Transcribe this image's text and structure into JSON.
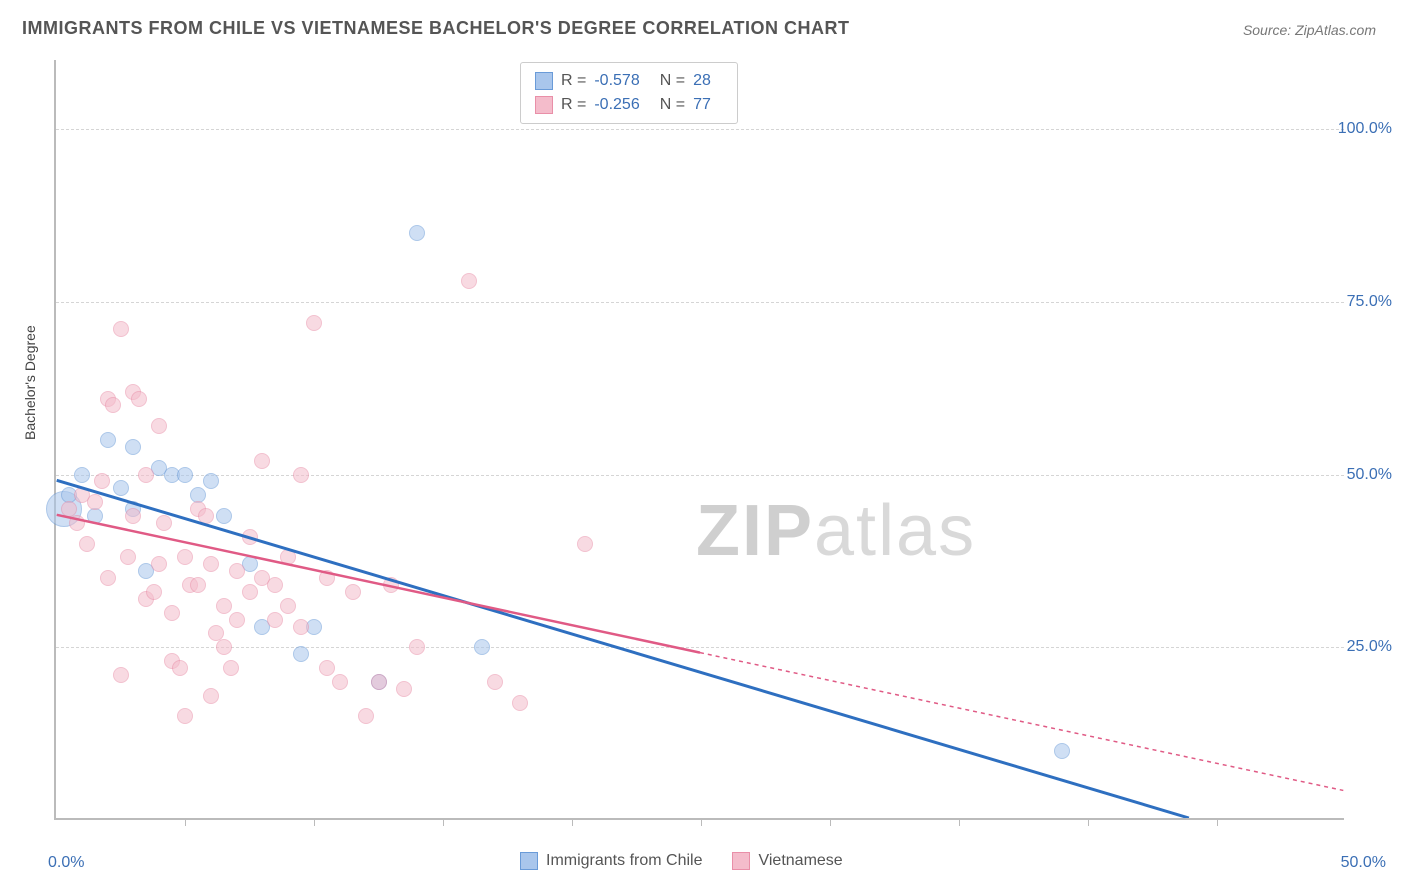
{
  "title": "IMMIGRANTS FROM CHILE VS VIETNAMESE BACHELOR'S DEGREE CORRELATION CHART",
  "source": "Source: ZipAtlas.com",
  "watermark_bold": "ZIP",
  "watermark_rest": "atlas",
  "chart": {
    "type": "scatter",
    "x_axis_label": "",
    "y_axis_label": "Bachelor's Degree",
    "xlim": [
      0,
      50
    ],
    "ylim": [
      0,
      110
    ],
    "x_tick_label_left": "0.0%",
    "x_tick_label_right": "50.0%",
    "y_tick_positions": [
      25,
      50,
      75,
      100
    ],
    "y_tick_labels": [
      "25.0%",
      "50.0%",
      "75.0%",
      "100.0%"
    ],
    "x_minor_ticks": [
      5,
      10,
      15,
      20,
      25,
      30,
      35,
      40,
      45
    ],
    "background_color": "#ffffff",
    "grid_color": "#d5d5d5",
    "axis_color": "#bbbbbb",
    "tick_label_color": "#3b6fb5",
    "point_radius": 8,
    "point_opacity": 0.55,
    "series": [
      {
        "name": "Immigrants from Chile",
        "color_fill": "#a9c6ec",
        "color_stroke": "#6a9bd8",
        "line_color": "#2e6fc0",
        "line_dash": "none",
        "r_value": "-0.578",
        "n_value": "28",
        "regression": {
          "x1": 0,
          "y1": 49,
          "x2": 44,
          "y2": 0
        },
        "points": [
          {
            "x": 0.3,
            "y": 45,
            "s": 18
          },
          {
            "x": 0.5,
            "y": 47,
            "s": 8
          },
          {
            "x": 1.0,
            "y": 50,
            "s": 8
          },
          {
            "x": 1.5,
            "y": 44,
            "s": 8
          },
          {
            "x": 2.0,
            "y": 55,
            "s": 8
          },
          {
            "x": 2.5,
            "y": 48,
            "s": 8
          },
          {
            "x": 3.0,
            "y": 54,
            "s": 8
          },
          {
            "x": 3.0,
            "y": 45,
            "s": 8
          },
          {
            "x": 3.5,
            "y": 36,
            "s": 8
          },
          {
            "x": 4.0,
            "y": 51,
            "s": 8
          },
          {
            "x": 4.5,
            "y": 50,
            "s": 8
          },
          {
            "x": 5.0,
            "y": 50,
            "s": 8
          },
          {
            "x": 5.5,
            "y": 47,
            "s": 8
          },
          {
            "x": 6.0,
            "y": 49,
            "s": 8
          },
          {
            "x": 6.5,
            "y": 44,
            "s": 8
          },
          {
            "x": 7.5,
            "y": 37,
            "s": 8
          },
          {
            "x": 8.0,
            "y": 28,
            "s": 8
          },
          {
            "x": 9.5,
            "y": 24,
            "s": 8
          },
          {
            "x": 10.0,
            "y": 28,
            "s": 8
          },
          {
            "x": 12.5,
            "y": 20,
            "s": 8
          },
          {
            "x": 14.0,
            "y": 85,
            "s": 8
          },
          {
            "x": 16.5,
            "y": 25,
            "s": 8
          },
          {
            "x": 39.0,
            "y": 10,
            "s": 8
          }
        ]
      },
      {
        "name": "Vietnamese",
        "color_fill": "#f4bccb",
        "color_stroke": "#e98fa8",
        "line_color": "#e05a85",
        "line_dash": "4,4",
        "r_value": "-0.256",
        "n_value": "77",
        "regression_solid": {
          "x1": 0,
          "y1": 44,
          "x2": 25,
          "y2": 24
        },
        "regression_dashed": {
          "x1": 25,
          "y1": 24,
          "x2": 50,
          "y2": 4
        },
        "points": [
          {
            "x": 0.5,
            "y": 45
          },
          {
            "x": 0.8,
            "y": 43
          },
          {
            "x": 1.0,
            "y": 47
          },
          {
            "x": 1.2,
            "y": 40
          },
          {
            "x": 1.5,
            "y": 46
          },
          {
            "x": 1.8,
            "y": 49
          },
          {
            "x": 2.0,
            "y": 35
          },
          {
            "x": 2.0,
            "y": 61
          },
          {
            "x": 2.2,
            "y": 60
          },
          {
            "x": 2.5,
            "y": 21
          },
          {
            "x": 2.5,
            "y": 71
          },
          {
            "x": 2.8,
            "y": 38
          },
          {
            "x": 3.0,
            "y": 62
          },
          {
            "x": 3.0,
            "y": 44
          },
          {
            "x": 3.2,
            "y": 61
          },
          {
            "x": 3.5,
            "y": 32
          },
          {
            "x": 3.5,
            "y": 50
          },
          {
            "x": 3.8,
            "y": 33
          },
          {
            "x": 4.0,
            "y": 57
          },
          {
            "x": 4.0,
            "y": 37
          },
          {
            "x": 4.2,
            "y": 43
          },
          {
            "x": 4.5,
            "y": 30
          },
          {
            "x": 4.5,
            "y": 23
          },
          {
            "x": 4.8,
            "y": 22
          },
          {
            "x": 5.0,
            "y": 38
          },
          {
            "x": 5.0,
            "y": 15
          },
          {
            "x": 5.2,
            "y": 34
          },
          {
            "x": 5.5,
            "y": 34
          },
          {
            "x": 5.5,
            "y": 45
          },
          {
            "x": 5.8,
            "y": 44
          },
          {
            "x": 6.0,
            "y": 37
          },
          {
            "x": 6.0,
            "y": 18
          },
          {
            "x": 6.2,
            "y": 27
          },
          {
            "x": 6.5,
            "y": 31
          },
          {
            "x": 6.5,
            "y": 25
          },
          {
            "x": 6.8,
            "y": 22
          },
          {
            "x": 7.0,
            "y": 36
          },
          {
            "x": 7.0,
            "y": 29
          },
          {
            "x": 7.5,
            "y": 33
          },
          {
            "x": 7.5,
            "y": 41
          },
          {
            "x": 8.0,
            "y": 35
          },
          {
            "x": 8.0,
            "y": 52
          },
          {
            "x": 8.5,
            "y": 29
          },
          {
            "x": 8.5,
            "y": 34
          },
          {
            "x": 9.0,
            "y": 38
          },
          {
            "x": 9.0,
            "y": 31
          },
          {
            "x": 9.5,
            "y": 28
          },
          {
            "x": 9.5,
            "y": 50
          },
          {
            "x": 10.0,
            "y": 72
          },
          {
            "x": 10.5,
            "y": 35
          },
          {
            "x": 10.5,
            "y": 22
          },
          {
            "x": 11.0,
            "y": 20
          },
          {
            "x": 11.5,
            "y": 33
          },
          {
            "x": 12.0,
            "y": 15
          },
          {
            "x": 12.5,
            "y": 20
          },
          {
            "x": 13.0,
            "y": 34
          },
          {
            "x": 13.5,
            "y": 19
          },
          {
            "x": 14.0,
            "y": 25
          },
          {
            "x": 16.0,
            "y": 78
          },
          {
            "x": 17.0,
            "y": 20
          },
          {
            "x": 18.0,
            "y": 17
          },
          {
            "x": 20.5,
            "y": 40
          }
        ]
      }
    ]
  },
  "legend_top_rows": [
    {
      "series": 0
    },
    {
      "series": 1
    }
  ],
  "legend_bottom_items": [
    {
      "series": 0
    },
    {
      "series": 1
    }
  ]
}
